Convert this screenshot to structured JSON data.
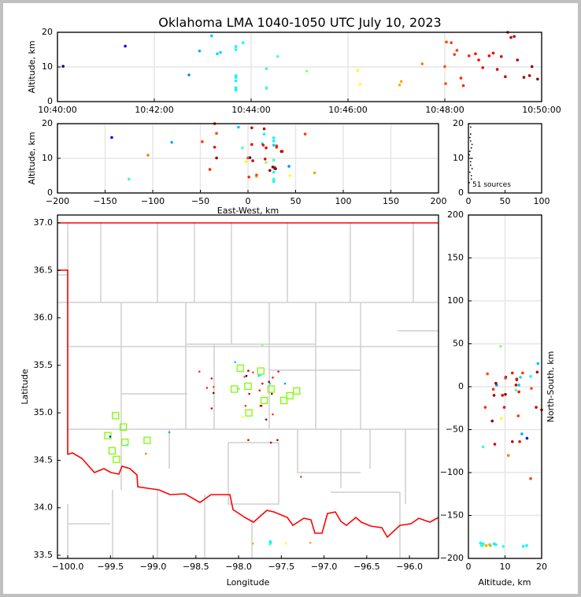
{
  "chart_data": [
    {
      "type": "scatter",
      "id": "time-altitude",
      "title": "Oklahoma LMA 1040-1050 UTC July 10, 2023",
      "xlabel": "",
      "ylabel": "Altitude, km",
      "xlim_seconds_after_1040": [
        0,
        600
      ],
      "ylim": [
        0,
        20
      ],
      "xticks": [
        "10:40:00",
        "10:42:00",
        "10:44:00",
        "10:46:00",
        "10:48:00",
        "10:50:00"
      ],
      "yticks": [
        "0",
        "10",
        "20"
      ],
      "grid": true,
      "color_by": "time (jet colormap)"
    },
    {
      "type": "scatter",
      "id": "ew-altitude",
      "xlabel": "East-West, km",
      "ylabel": "Altitude, km",
      "xlim": [
        -200,
        200
      ],
      "ylim": [
        0,
        20
      ],
      "xticks": [
        "−200",
        "−150",
        "−100",
        "−50",
        "0",
        "50",
        "100",
        "150",
        "200"
      ],
      "yticks": [
        "0",
        "10",
        "20"
      ],
      "grid": true
    },
    {
      "type": "scatter",
      "id": "altitude-histogram",
      "xlim": [
        0,
        100
      ],
      "ylim": [
        0,
        20
      ],
      "xticks": [
        "0",
        "50",
        "100"
      ],
      "yticks": [
        "0",
        "10",
        "20"
      ],
      "annotation": "51 sources"
    },
    {
      "type": "scatter",
      "id": "plan-view",
      "xlabel": "Longitude",
      "ylabel": "Latitude",
      "xlim": [
        -100.12,
        -95.66
      ],
      "ylim": [
        33.467,
        37.083
      ],
      "xticks": [
        "−100.0",
        "−99.5",
        "−99.0",
        "−98.5",
        "−98.0",
        "−97.5",
        "−97.0",
        "−96.5",
        "−96.0"
      ],
      "yticks": [
        "33.5",
        "34.0",
        "34.5",
        "35.0",
        "35.5",
        "36.0",
        "36.5",
        "37.0"
      ],
      "network_center": {
        "lon": -97.93,
        "lat": 35.29
      },
      "stations": [
        [
          -97.98,
          35.47
        ],
        [
          -97.74,
          35.44
        ],
        [
          -97.89,
          35.28
        ],
        [
          -98.05,
          35.25
        ],
        [
          -97.62,
          35.25
        ],
        [
          -97.32,
          35.23
        ],
        [
          -97.4,
          35.18
        ],
        [
          -97.7,
          35.13
        ],
        [
          -97.47,
          35.13
        ],
        [
          -97.88,
          35.0
        ],
        [
          -99.44,
          34.97
        ],
        [
          -99.35,
          34.85
        ],
        [
          -99.53,
          34.76
        ],
        [
          -99.33,
          34.69
        ],
        [
          -99.07,
          34.71
        ],
        [
          -99.48,
          34.6
        ],
        [
          -99.43,
          34.51
        ]
      ]
    },
    {
      "type": "scatter",
      "id": "altitude-ns",
      "xlabel": "Altitude, km",
      "ylabel": "North-South, km",
      "xlim": [
        0,
        20
      ],
      "ylim": [
        -200,
        200
      ],
      "xticks": [
        "0",
        "10",
        "20"
      ],
      "yticks": [
        "−200",
        "−150",
        "−100",
        "−50",
        "0",
        "50",
        "100",
        "150",
        "200"
      ],
      "grid": true
    }
  ],
  "sources_fields": [
    "t_sec_after_1040",
    "ew_km",
    "ns_km",
    "alt_km"
  ],
  "sources": [
    [
      7,
      2,
      11,
      10.2
    ],
    [
      84,
      -143,
      -60,
      16
    ],
    [
      163,
      43,
      2,
      7.7
    ],
    [
      176,
      -80,
      -55,
      14.6
    ],
    [
      191,
      -10,
      27,
      19
    ],
    [
      198,
      27,
      2,
      13.8
    ],
    [
      202,
      15,
      11,
      14.2
    ],
    [
      221,
      27,
      -185,
      15.9
    ],
    [
      221,
      27,
      -186,
      15
    ],
    [
      221,
      28,
      -184,
      7.5
    ],
    [
      221,
      28,
      -183,
      7
    ],
    [
      221,
      27,
      -185,
      6
    ],
    [
      221,
      27,
      -183,
      4
    ],
    [
      221,
      27,
      -185,
      3.6
    ],
    [
      221,
      27,
      -182,
      3.3
    ],
    [
      230,
      17,
      12,
      17
    ],
    [
      259,
      27,
      -186,
      9.5
    ],
    [
      259,
      -125,
      -70,
      4
    ],
    [
      259,
      27,
      -185,
      3.8
    ],
    [
      273,
      -6,
      -4,
      13
    ],
    [
      309,
      19,
      47,
      8.8
    ],
    [
      372,
      -2,
      -37,
      9
    ],
    [
      375,
      44,
      -185,
      5
    ],
    [
      424,
      9,
      -185,
      4.8
    ],
    [
      426,
      70,
      -184,
      5.8
    ],
    [
      452,
      -105,
      -80,
      10.9
    ],
    [
      480,
      0,
      10,
      10.1
    ],
    [
      481,
      9,
      15,
      5.2
    ],
    [
      482,
      -33,
      -2,
      17.2
    ],
    [
      488,
      60,
      -107,
      17
    ],
    [
      492,
      30,
      -34,
      13.6
    ],
    [
      495,
      -48,
      16,
      14.8
    ],
    [
      500,
      -40,
      -3,
      6.8
    ],
    [
      503,
      1,
      -24,
      4.6
    ],
    [
      510,
      30,
      9,
      13.2
    ],
    [
      518,
      16,
      -6,
      13.8
    ],
    [
      522,
      36,
      16,
      12
    ],
    [
      527,
      18,
      -24,
      9.8
    ],
    [
      535,
      -35,
      8,
      13.2
    ],
    [
      540,
      4,
      -64,
      14
    ],
    [
      545,
      5,
      -10,
      9.3
    ],
    [
      550,
      19,
      2,
      13
    ],
    [
      555,
      28,
      -67,
      7.2
    ],
    [
      558,
      -35,
      -27,
      20
    ],
    [
      562,
      17,
      -24,
      18.5
    ],
    [
      566,
      4,
      17,
      18.8
    ],
    [
      570,
      35,
      -64,
      12
    ],
    [
      578,
      29,
      -10,
      7
    ],
    [
      585,
      26,
      4,
      7.5
    ],
    [
      588,
      -33,
      -9,
      10.1
    ],
    [
      595,
      23,
      -40,
      6.5
    ]
  ],
  "legend_text": {
    "sources_count": "51 sources"
  }
}
